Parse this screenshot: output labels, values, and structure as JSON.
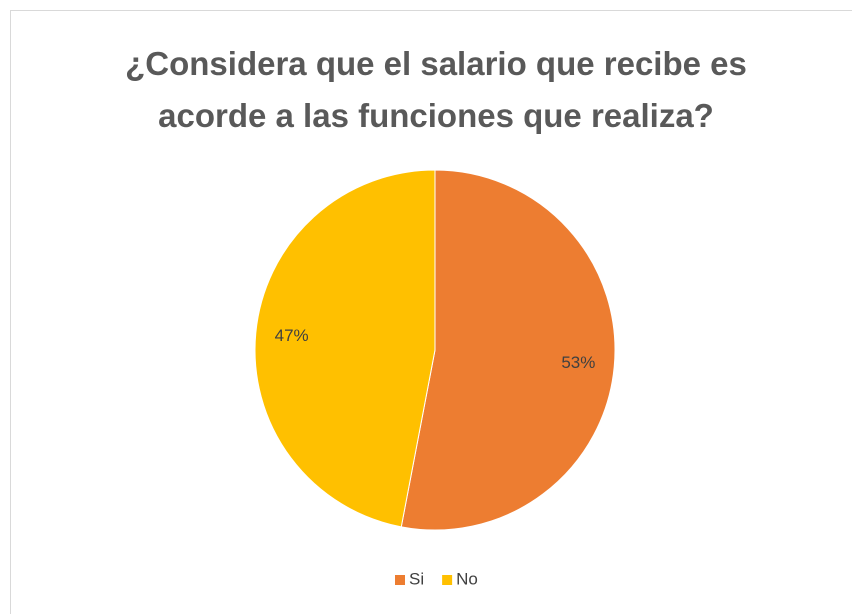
{
  "chart_data": {
    "type": "pie",
    "title": "¿Considera que el salario que recibe es acorde a las funciones que realiza?",
    "categories": [
      "Si",
      "No"
    ],
    "values": [
      53,
      47
    ],
    "value_labels": [
      "53%",
      "47%"
    ],
    "colors": [
      "#ED7D31",
      "#FFC000"
    ],
    "legend": "bottom"
  }
}
